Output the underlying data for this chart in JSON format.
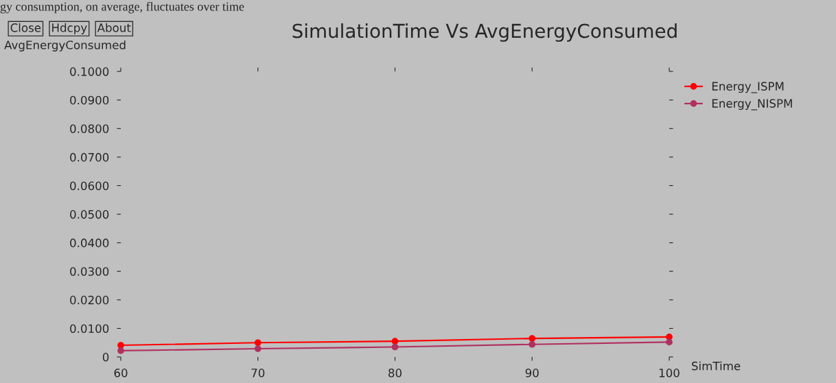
{
  "chart_data": {
    "type": "line",
    "title": "SimulationTime Vs AvgEnergyConsumed",
    "xlabel": "SimTime",
    "ylabel": "AvgEnergyConsumed",
    "annotations": [
      "gy consumption, on average, fluctuates over time",
      "Close",
      "Hdcpy",
      "About"
    ],
    "x": [
      60,
      70,
      80,
      90,
      100
    ],
    "series": [
      {
        "name": "Energy_ISPM",
        "color": "#ff0000",
        "values": [
          0.0041,
          0.005,
          0.0055,
          0.0065,
          0.007
        ]
      },
      {
        "name": "Energy_NISPM",
        "color": "#b03060",
        "values": [
          0.0022,
          0.0029,
          0.0035,
          0.0044,
          0.0052
        ]
      }
    ],
    "xlim": [
      60,
      100
    ],
    "ylim": [
      0,
      0.1
    ],
    "xticks": [
      60,
      70,
      80,
      90,
      100
    ],
    "yticks": [
      0,
      {
        "value": 0.01,
        "label": "0.0100"
      },
      {
        "value": 0.02,
        "label": "0.0200"
      },
      {
        "value": 0.03,
        "label": "0.0300"
      },
      {
        "value": 0.04,
        "label": "0.0400"
      },
      {
        "value": 0.05,
        "label": "0.0500"
      },
      {
        "value": 0.06,
        "label": "0.0600"
      },
      {
        "value": 0.07,
        "label": "0.0700"
      },
      {
        "value": 0.08,
        "label": "0.0800"
      },
      {
        "value": 0.09,
        "label": "0.0900"
      },
      {
        "value": 0.1,
        "label": "0.1000"
      }
    ],
    "marker": "circle",
    "line_style": "solid",
    "legend": "top right",
    "grid": false
  }
}
